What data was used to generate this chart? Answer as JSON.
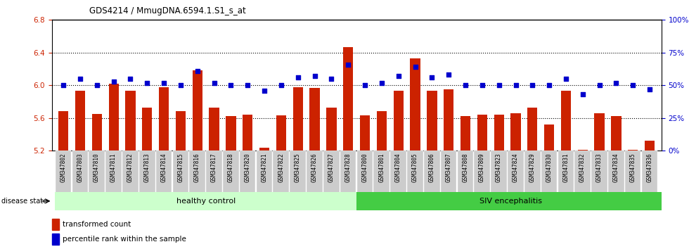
{
  "title": "GDS4214 / MmugDNA.6594.1.S1_s_at",
  "samples": [
    "GSM347802",
    "GSM347803",
    "GSM347810",
    "GSM347811",
    "GSM347812",
    "GSM347813",
    "GSM347814",
    "GSM347815",
    "GSM347816",
    "GSM347817",
    "GSM347818",
    "GSM347820",
    "GSM347821",
    "GSM347822",
    "GSM347825",
    "GSM347826",
    "GSM347827",
    "GSM347828",
    "GSM347800",
    "GSM347801",
    "GSM347804",
    "GSM347805",
    "GSM347806",
    "GSM347807",
    "GSM347808",
    "GSM347809",
    "GSM347823",
    "GSM347824",
    "GSM347829",
    "GSM347830",
    "GSM347831",
    "GSM347832",
    "GSM347833",
    "GSM347834",
    "GSM347835",
    "GSM347836"
  ],
  "bar_values": [
    5.68,
    5.93,
    5.65,
    6.02,
    5.93,
    5.73,
    5.98,
    5.68,
    6.18,
    5.73,
    5.62,
    5.64,
    5.24,
    5.63,
    5.98,
    5.97,
    5.73,
    6.47,
    5.63,
    5.68,
    5.93,
    6.33,
    5.93,
    5.95,
    5.62,
    5.64,
    5.64,
    5.66,
    5.73,
    5.52,
    5.93,
    5.21,
    5.66,
    5.62,
    5.21,
    5.32
  ],
  "percentile_values": [
    50,
    55,
    50,
    53,
    55,
    52,
    52,
    50,
    61,
    52,
    50,
    50,
    46,
    50,
    56,
    57,
    55,
    66,
    50,
    52,
    57,
    64,
    56,
    58,
    50,
    50,
    50,
    50,
    50,
    50,
    55,
    43,
    50,
    52,
    50,
    47
  ],
  "healthy_count": 18,
  "ylim_left": [
    5.2,
    6.8
  ],
  "ylim_right": [
    0,
    100
  ],
  "yticks_left": [
    5.2,
    5.6,
    6.0,
    6.4,
    6.8
  ],
  "yticks_right": [
    0,
    25,
    50,
    75,
    100
  ],
  "bar_color": "#cc2200",
  "dot_color": "#0000cc",
  "healthy_color": "#ccffcc",
  "siv_color": "#44cc44",
  "label_color_left": "#cc2200",
  "label_color_right": "#0000cc",
  "grid_color": "#000000",
  "background_color": "#ffffff",
  "xlabel_area_bg": "#cccccc"
}
